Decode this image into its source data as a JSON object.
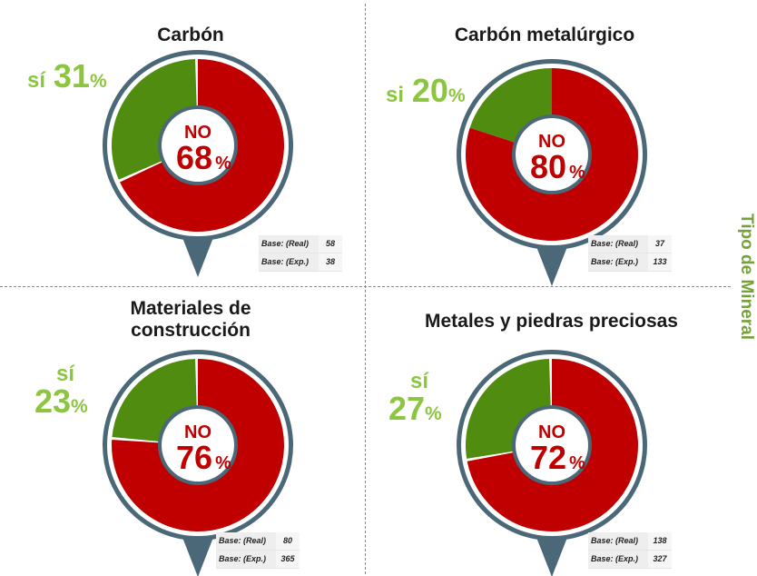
{
  "side_label": "Tipo de Mineral",
  "colors": {
    "no": "#c00000",
    "si": "#4f8c0f",
    "si_text": "#8cc63f",
    "ring": "#4a6878"
  },
  "chart_data": [
    {
      "type": "pie",
      "title": "Carbón",
      "slices": [
        {
          "label": "NO",
          "value": 68
        },
        {
          "label": "Sí",
          "value": 31
        }
      ],
      "no_label": "NO",
      "no_value": "68",
      "si_label": "sí",
      "si_value": "31",
      "percent_sign": "%",
      "base": [
        {
          "label": "Base: (Real)",
          "value": "58"
        },
        {
          "label": "Base: (Exp.)",
          "value": "38"
        }
      ]
    },
    {
      "type": "pie",
      "title": "Carbón metalúrgico",
      "slices": [
        {
          "label": "NO",
          "value": 80
        },
        {
          "label": "Sí",
          "value": 20
        }
      ],
      "no_label": "NO",
      "no_value": "80",
      "si_label": "si",
      "si_value": "20",
      "percent_sign": "%",
      "base": [
        {
          "label": "Base: (Real)",
          "value": "37"
        },
        {
          "label": "Base: (Exp.)",
          "value": "133"
        }
      ]
    },
    {
      "type": "pie",
      "title": "Materiales de\nconstrucción",
      "slices": [
        {
          "label": "NO",
          "value": 76
        },
        {
          "label": "Sí",
          "value": 23
        }
      ],
      "no_label": "NO",
      "no_value": "76",
      "si_label": "sí",
      "si_value": "23",
      "percent_sign": "%",
      "base": [
        {
          "label": "Base: (Real)",
          "value": "80"
        },
        {
          "label": "Base: (Exp.)",
          "value": "365"
        }
      ]
    },
    {
      "type": "pie",
      "title": "Metales y piedras preciosas",
      "slices": [
        {
          "label": "NO",
          "value": 72
        },
        {
          "label": "Sí",
          "value": 27
        }
      ],
      "no_label": "NO",
      "no_value": "72",
      "si_label": "sí",
      "si_value": "27",
      "percent_sign": "%",
      "base": [
        {
          "label": "Base: (Real)",
          "value": "138"
        },
        {
          "label": "Base: (Exp.)",
          "value": "327"
        }
      ]
    }
  ]
}
